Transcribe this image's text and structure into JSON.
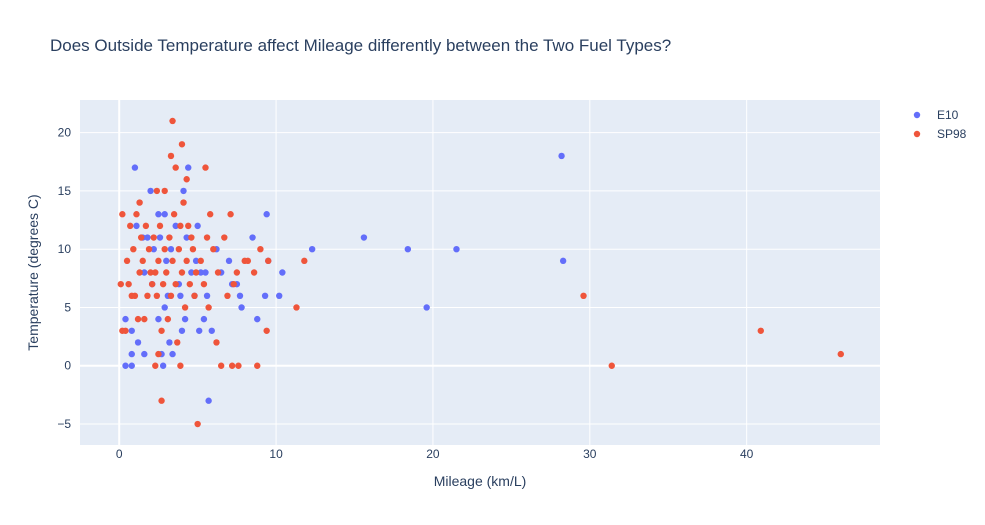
{
  "chart_data": {
    "type": "scatter",
    "title": "Does Outside Temperature affect Mileage differently between the Two Fuel Types?",
    "xlabel": "Mileage (km/L)",
    "ylabel": "Temperature (degrees C)",
    "xlim": [
      -2.5,
      48.5
    ],
    "ylim": [
      -6.8,
      22.8
    ],
    "xticks": [
      0,
      10,
      20,
      30,
      40
    ],
    "yticks": [
      -5,
      0,
      5,
      10,
      15,
      20
    ],
    "grid": true,
    "legend_position": "top-right",
    "series": [
      {
        "name": "E10",
        "color": "#636efa",
        "points": [
          [
            0.4,
            4
          ],
          [
            0.4,
            0
          ],
          [
            0.8,
            0
          ],
          [
            0.8,
            1
          ],
          [
            0.8,
            3
          ],
          [
            1.0,
            17
          ],
          [
            1.1,
            12
          ],
          [
            1.2,
            2
          ],
          [
            1.5,
            11
          ],
          [
            1.6,
            8
          ],
          [
            1.6,
            1
          ],
          [
            1.8,
            11
          ],
          [
            2.0,
            15
          ],
          [
            2.1,
            7
          ],
          [
            2.2,
            10
          ],
          [
            2.5,
            13
          ],
          [
            2.5,
            4
          ],
          [
            2.6,
            11
          ],
          [
            2.7,
            1
          ],
          [
            2.8,
            0
          ],
          [
            2.9,
            13
          ],
          [
            2.9,
            5
          ],
          [
            3.0,
            9
          ],
          [
            3.1,
            6
          ],
          [
            3.2,
            2
          ],
          [
            3.3,
            10
          ],
          [
            3.4,
            1
          ],
          [
            3.6,
            12
          ],
          [
            3.8,
            7
          ],
          [
            3.9,
            6
          ],
          [
            4.0,
            3
          ],
          [
            4.1,
            15
          ],
          [
            4.2,
            4
          ],
          [
            4.3,
            11
          ],
          [
            4.4,
            17
          ],
          [
            4.6,
            8
          ],
          [
            4.8,
            6
          ],
          [
            4.9,
            9
          ],
          [
            5.0,
            12
          ],
          [
            5.1,
            3
          ],
          [
            5.2,
            8
          ],
          [
            5.4,
            4
          ],
          [
            5.5,
            8
          ],
          [
            5.6,
            6
          ],
          [
            5.7,
            -3
          ],
          [
            5.9,
            3
          ],
          [
            6.2,
            10
          ],
          [
            6.5,
            8
          ],
          [
            7.0,
            9
          ],
          [
            7.2,
            7
          ],
          [
            7.5,
            7
          ],
          [
            7.7,
            6
          ],
          [
            7.8,
            5
          ],
          [
            8.5,
            11
          ],
          [
            8.8,
            4
          ],
          [
            9.3,
            6
          ],
          [
            9.4,
            13
          ],
          [
            9.5,
            9
          ],
          [
            10.2,
            6
          ],
          [
            10.4,
            8
          ],
          [
            12.3,
            10
          ],
          [
            15.6,
            11
          ],
          [
            18.4,
            10
          ],
          [
            19.6,
            5
          ],
          [
            21.5,
            10
          ],
          [
            28.2,
            18
          ],
          [
            28.3,
            9
          ]
        ]
      },
      {
        "name": "SP98",
        "color": "#ef553b",
        "points": [
          [
            0.1,
            7
          ],
          [
            0.2,
            3
          ],
          [
            0.2,
            13
          ],
          [
            0.4,
            3
          ],
          [
            0.5,
            9
          ],
          [
            0.6,
            7
          ],
          [
            0.7,
            12
          ],
          [
            0.8,
            6
          ],
          [
            0.9,
            10
          ],
          [
            1.0,
            6
          ],
          [
            1.1,
            13
          ],
          [
            1.2,
            4
          ],
          [
            1.3,
            14
          ],
          [
            1.3,
            8
          ],
          [
            1.4,
            11
          ],
          [
            1.5,
            9
          ],
          [
            1.6,
            4
          ],
          [
            1.7,
            12
          ],
          [
            1.8,
            6
          ],
          [
            1.9,
            10
          ],
          [
            2.0,
            8
          ],
          [
            2.1,
            7
          ],
          [
            2.2,
            11
          ],
          [
            2.3,
            8
          ],
          [
            2.3,
            0
          ],
          [
            2.4,
            15
          ],
          [
            2.4,
            6
          ],
          [
            2.5,
            9
          ],
          [
            2.5,
            1
          ],
          [
            2.6,
            12
          ],
          [
            2.7,
            3
          ],
          [
            2.7,
            -3
          ],
          [
            2.8,
            7
          ],
          [
            2.9,
            10
          ],
          [
            2.9,
            15
          ],
          [
            3.0,
            8
          ],
          [
            3.1,
            4
          ],
          [
            3.2,
            11
          ],
          [
            3.3,
            18
          ],
          [
            3.3,
            6
          ],
          [
            3.4,
            9
          ],
          [
            3.4,
            21
          ],
          [
            3.5,
            13
          ],
          [
            3.6,
            17
          ],
          [
            3.6,
            7
          ],
          [
            3.7,
            2
          ],
          [
            3.8,
            10
          ],
          [
            3.9,
            12
          ],
          [
            3.9,
            0
          ],
          [
            4.0,
            19
          ],
          [
            4.0,
            8
          ],
          [
            4.1,
            14
          ],
          [
            4.2,
            5
          ],
          [
            4.3,
            16
          ],
          [
            4.3,
            9
          ],
          [
            4.4,
            12
          ],
          [
            4.5,
            7
          ],
          [
            4.6,
            11
          ],
          [
            4.7,
            10
          ],
          [
            4.8,
            6
          ],
          [
            4.9,
            8
          ],
          [
            5.0,
            -5
          ],
          [
            5.2,
            9
          ],
          [
            5.4,
            7
          ],
          [
            5.5,
            17
          ],
          [
            5.6,
            11
          ],
          [
            5.7,
            5
          ],
          [
            5.8,
            13
          ],
          [
            6.0,
            10
          ],
          [
            6.2,
            2
          ],
          [
            6.3,
            8
          ],
          [
            6.5,
            0
          ],
          [
            6.7,
            11
          ],
          [
            6.9,
            6
          ],
          [
            7.1,
            13
          ],
          [
            7.2,
            0
          ],
          [
            7.3,
            7
          ],
          [
            7.5,
            8
          ],
          [
            7.6,
            0
          ],
          [
            8.0,
            9
          ],
          [
            8.2,
            9
          ],
          [
            8.6,
            8
          ],
          [
            8.8,
            0
          ],
          [
            9.0,
            10
          ],
          [
            9.4,
            3
          ],
          [
            9.5,
            9
          ],
          [
            11.3,
            5
          ],
          [
            11.8,
            9
          ],
          [
            29.6,
            6
          ],
          [
            31.4,
            0
          ],
          [
            40.9,
            3
          ],
          [
            46.0,
            1
          ]
        ]
      }
    ]
  }
}
